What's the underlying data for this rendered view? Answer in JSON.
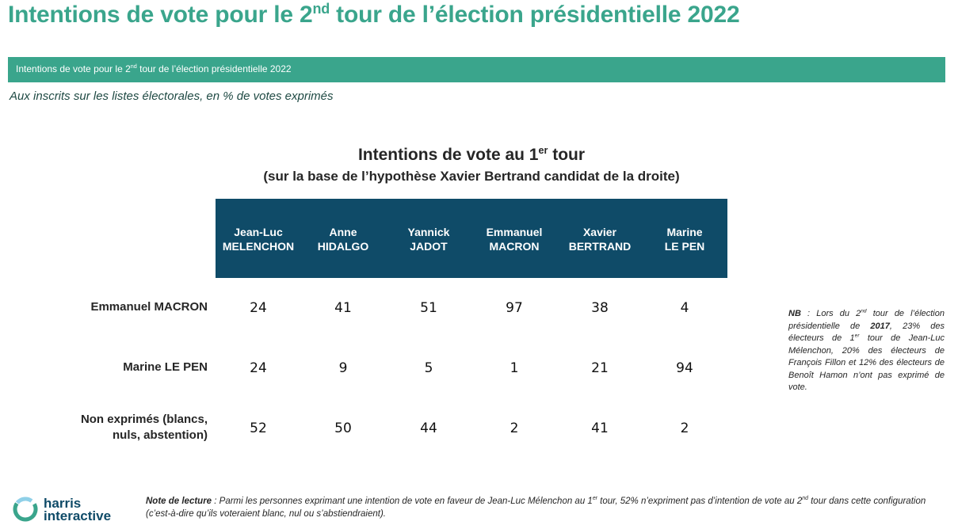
{
  "header": {
    "title_pre": "Intentions de vote pour le 2",
    "title_sup": "nd",
    "title_post": " tour de l’élection présidentielle 2022",
    "banner_pre": "Intentions de vote pour le 2",
    "banner_sup": "nd",
    "banner_post": " tour de l’élection présidentielle 2022",
    "subtitle": "Aux inscrits sur les listes électorales, en % de votes exprimés"
  },
  "chart_data": {
    "type": "table",
    "title_pre": "Intentions de vote au 1",
    "title_sup": "er",
    "title_post": " tour",
    "subtitle": "(sur la base de l’hypothèse Xavier Bertrand candidat de la droite)",
    "columns": [
      {
        "line1": "Jean-Luc",
        "line2": "MELENCHON"
      },
      {
        "line1": "Anne",
        "line2": "HIDALGO"
      },
      {
        "line1": "Yannick",
        "line2": "JADOT"
      },
      {
        "line1": "Emmanuel",
        "line2": "MACRON"
      },
      {
        "line1": "Xavier",
        "line2": "BERTRAND"
      },
      {
        "line1": "Marine",
        "line2": "LE PEN"
      }
    ],
    "rows": [
      {
        "line1": "Emmanuel MACRON",
        "line2": "",
        "values": [
          24,
          41,
          51,
          97,
          38,
          4
        ]
      },
      {
        "line1": "Marine LE PEN",
        "line2": "",
        "values": [
          24,
          9,
          5,
          1,
          21,
          94
        ]
      },
      {
        "line1": "Non exprimés (blancs,",
        "line2": "nuls, abstention)",
        "values": [
          52,
          50,
          44,
          2,
          41,
          2
        ]
      }
    ],
    "header_color": "#0f4b68"
  },
  "notes": {
    "nb_label": "NB",
    "nb_a": " : Lors du 2",
    "nb_sup1": "nd",
    "nb_b": " tour de l’élection présidentielle de ",
    "nb_year": "2017",
    "nb_c": ", 23% des électeurs de 1",
    "nb_sup2": "er",
    "nb_d": " tour de Jean-Luc Mélenchon, 20% des électeurs de François Fillon et 12% des électeurs de Benoît Hamon n’ont pas exprimé de vote.",
    "reading_label": "Note de lecture",
    "reading_a": " : Parmi les personnes exprimant une intention de vote en faveur de Jean-Luc Mélenchon au 1",
    "reading_sup1": "er",
    "reading_b": " tour, 52% n’expriment pas d’intention de vote au 2",
    "reading_sup2": "nd",
    "reading_c": " tour dans cette configuration (c’est-à-dire qu’ils voteraient blanc, nul ou s’abstiendraient)."
  },
  "logo": {
    "line1": "harris",
    "line2": "interactive",
    "icon": "harris-ring-logo-icon"
  },
  "colors": {
    "accent": "#3aa58c",
    "dark_blue": "#0f4b68"
  }
}
